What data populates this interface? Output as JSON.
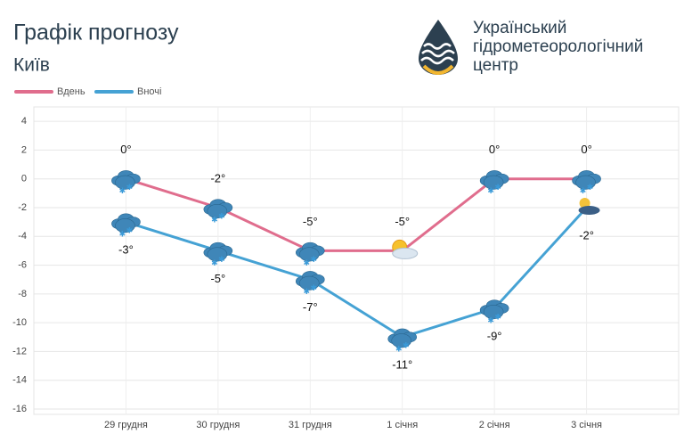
{
  "header": {
    "title": "Графік прогнозу",
    "subtitle": "Київ",
    "org": [
      "Український",
      "гідрометеорологічний",
      "центр"
    ]
  },
  "chart_data": {
    "type": "line",
    "categories": [
      "29 грудня",
      "30 грудня",
      "31 грудня",
      "1 січня",
      "2 січня",
      "3 січня"
    ],
    "series": [
      {
        "name": "Вдень",
        "color": "#e06d8d",
        "values": [
          0,
          -2,
          -5,
          -5,
          0,
          0
        ],
        "value_labels": [
          "0°",
          "-2°",
          "-5°",
          "-5°",
          "0°",
          "0°"
        ],
        "icons": [
          "snow",
          "snow",
          "snow",
          "sun",
          "snow",
          "snow"
        ]
      },
      {
        "name": "Вночі",
        "color": "#45a2d4",
        "values": [
          -3,
          -5,
          -7,
          -11,
          -9,
          -2
        ],
        "value_labels": [
          "-3°",
          "-5°",
          "-7°",
          "-11°",
          "-9°",
          "-2°"
        ],
        "icons": [
          "snow",
          "snow",
          "snow",
          "snow",
          "snow",
          "moon"
        ]
      }
    ],
    "ylim": [
      -16,
      5
    ],
    "yticks": [
      4,
      2,
      0,
      -2,
      -4,
      -6,
      -8,
      -10,
      -12,
      -14,
      -16
    ],
    "grid": true,
    "legend": "top-left"
  }
}
